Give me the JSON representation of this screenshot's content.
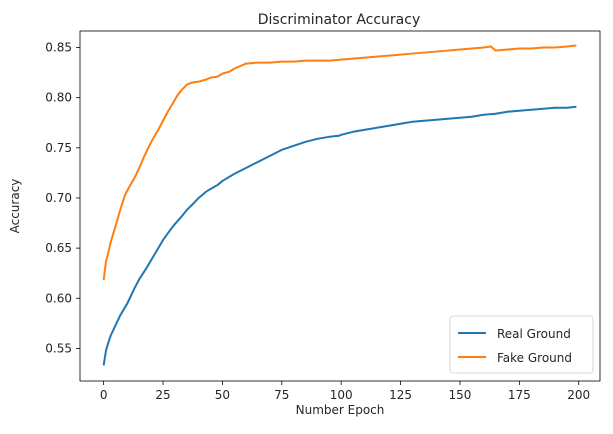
{
  "chart_data": {
    "type": "line",
    "title": "Discriminator Accuracy",
    "xlabel": "Number Epoch",
    "ylabel": "Accuracy",
    "xlim": [
      -9.95,
      208.95
    ],
    "ylim": [
      0.5175,
      0.8665
    ],
    "xticks": [
      0,
      25,
      50,
      75,
      100,
      125,
      150,
      175,
      200
    ],
    "yticks": [
      0.55,
      0.6,
      0.65,
      0.7,
      0.75,
      0.8,
      0.85
    ],
    "ytick_labels": [
      "0.55",
      "0.60",
      "0.65",
      "0.70",
      "0.75",
      "0.80",
      "0.85"
    ],
    "grid": false,
    "legend_position": "lower-right",
    "series": [
      {
        "name": "Real Ground",
        "color": "#1f77b4",
        "x": [
          0,
          1,
          2,
          3,
          5,
          7,
          10,
          13,
          15,
          18,
          20,
          23,
          25,
          28,
          30,
          33,
          35,
          38,
          40,
          43,
          45,
          48,
          50,
          55,
          60,
          65,
          70,
          75,
          80,
          85,
          90,
          95,
          99,
          100,
          105,
          110,
          115,
          120,
          125,
          130,
          135,
          140,
          145,
          150,
          155,
          160,
          165,
          170,
          175,
          180,
          185,
          190,
          195,
          199
        ],
        "y": [
          0.533,
          0.548,
          0.556,
          0.563,
          0.573,
          0.583,
          0.595,
          0.61,
          0.619,
          0.63,
          0.638,
          0.65,
          0.658,
          0.668,
          0.674,
          0.682,
          0.688,
          0.695,
          0.7,
          0.706,
          0.709,
          0.713,
          0.717,
          0.724,
          0.73,
          0.736,
          0.742,
          0.748,
          0.752,
          0.756,
          0.759,
          0.761,
          0.762,
          0.763,
          0.766,
          0.768,
          0.77,
          0.772,
          0.774,
          0.776,
          0.777,
          0.778,
          0.779,
          0.78,
          0.781,
          0.783,
          0.784,
          0.786,
          0.787,
          0.788,
          0.789,
          0.79,
          0.79,
          0.791
        ]
      },
      {
        "name": "Fake Ground",
        "color": "#ff7f0e",
        "x": [
          0,
          1,
          2,
          3,
          5,
          7,
          9,
          11,
          13,
          15,
          17,
          19,
          21,
          23,
          25,
          27,
          29,
          31,
          33,
          35,
          37,
          40,
          43,
          45,
          48,
          50,
          53,
          55,
          58,
          60,
          65,
          70,
          75,
          80,
          85,
          90,
          95,
          100,
          105,
          110,
          115,
          120,
          125,
          130,
          135,
          140,
          145,
          150,
          155,
          160,
          163,
          165,
          170,
          175,
          180,
          185,
          190,
          195,
          199
        ],
        "y": [
          0.618,
          0.637,
          0.646,
          0.656,
          0.672,
          0.688,
          0.703,
          0.712,
          0.72,
          0.73,
          0.741,
          0.751,
          0.76,
          0.768,
          0.777,
          0.786,
          0.794,
          0.802,
          0.808,
          0.813,
          0.815,
          0.816,
          0.818,
          0.82,
          0.821,
          0.824,
          0.826,
          0.829,
          0.832,
          0.834,
          0.835,
          0.835,
          0.836,
          0.836,
          0.837,
          0.837,
          0.837,
          0.838,
          0.839,
          0.84,
          0.841,
          0.842,
          0.843,
          0.844,
          0.845,
          0.846,
          0.847,
          0.848,
          0.849,
          0.85,
          0.851,
          0.847,
          0.848,
          0.849,
          0.849,
          0.85,
          0.85,
          0.851,
          0.852
        ]
      }
    ]
  }
}
